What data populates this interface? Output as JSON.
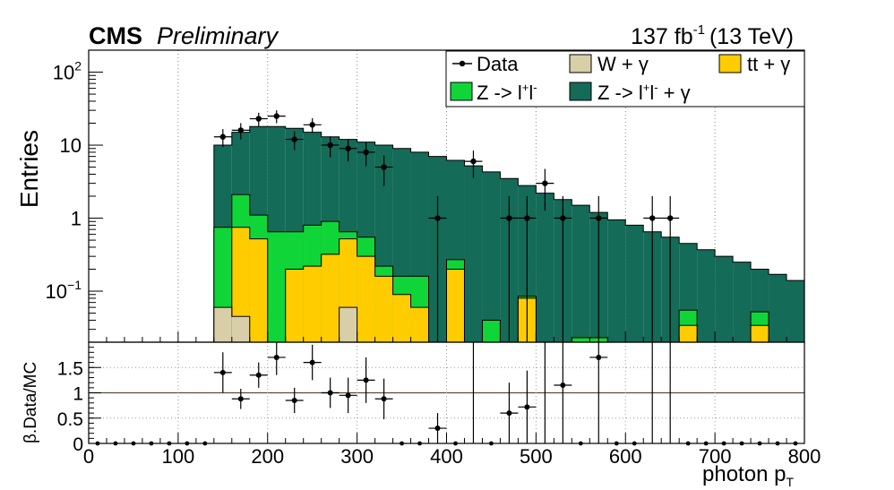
{
  "header": {
    "cms": "CMS",
    "preliminary": "Preliminary",
    "lumi_value": "137 fb",
    "lumi_exp": "-1",
    "energy": "(13 TeV)"
  },
  "chart_data": [
    {
      "type": "bar",
      "panel": "main",
      "ylabel": "Entries",
      "log_y": true,
      "xlim": [
        0,
        800
      ],
      "ylim": [
        0.02,
        200
      ],
      "bin_width": 20,
      "grid": "vertical dotted",
      "legend_placement": "top-right",
      "y_ticks": [
        {
          "value": 0.1,
          "base": "10",
          "exp": "−1"
        },
        {
          "value": 1,
          "base": "1",
          "exp": ""
        },
        {
          "value": 10,
          "base": "10",
          "exp": ""
        },
        {
          "value": 100,
          "base": "10",
          "exp": "2"
        }
      ],
      "legend": {
        "data": "Data",
        "wg": "W + γ",
        "ttg": "tt + γ",
        "zll": "Z ->  l",
        "zllg": "Z -> l",
        "zllg_suffix": " + γ"
      },
      "colors": {
        "zllg": "#146b57",
        "zll": "#10d538",
        "wg": "#d8cfa8",
        "ttg": "#ffcc00",
        "data": "#000000"
      },
      "series": [
        {
          "key": "zllg",
          "stack_total": [
            0,
            0,
            0,
            0,
            0,
            0,
            0,
            10,
            15,
            18,
            18,
            17,
            15,
            13,
            12,
            11,
            10,
            9,
            8,
            7,
            6.2,
            5.2,
            4.3,
            3.5,
            2.8,
            2.2,
            1.8,
            1.5,
            1.2,
            0.95,
            0.8,
            0.65,
            0.55,
            0.45,
            0.37,
            0.3,
            0.25,
            0.2,
            0.17,
            0.14
          ]
        },
        {
          "key": "zll",
          "stack_total": [
            0,
            0,
            0,
            0,
            0,
            0,
            0,
            0.75,
            2.1,
            1.1,
            0.65,
            0.65,
            0.8,
            0.9,
            0.65,
            0.55,
            0.22,
            0.16,
            0.16,
            0,
            0.27,
            0,
            0.04,
            0,
            0.085,
            0,
            0,
            0.023,
            0.023,
            0,
            0,
            0,
            0,
            0.055,
            0,
            0,
            0,
            0.052,
            0,
            0
          ]
        },
        {
          "key": "ttg",
          "stack_total": [
            0,
            0,
            0,
            0,
            0,
            0,
            0,
            0,
            0.75,
            0.52,
            0,
            0.2,
            0.22,
            0.32,
            0.52,
            0.3,
            0.16,
            0.09,
            0.06,
            0,
            0.2,
            0,
            0,
            0,
            0.08,
            0,
            0,
            0,
            0,
            0,
            0,
            0,
            0,
            0.034,
            0,
            0,
            0,
            0.034,
            0,
            0
          ]
        },
        {
          "key": "wg",
          "stack_total": [
            0,
            0,
            0,
            0,
            0,
            0,
            0,
            0.06,
            0.045,
            0,
            0,
            0,
            0,
            0,
            0.06,
            0,
            0,
            0,
            0,
            0,
            0,
            0,
            0,
            0,
            0,
            0,
            0,
            0,
            0,
            0,
            0,
            0,
            0,
            0,
            0,
            0,
            0,
            0,
            0,
            0
          ]
        }
      ],
      "data_points": [
        {
          "x": 150,
          "y": 13
        },
        {
          "x": 170,
          "y": 16
        },
        {
          "x": 190,
          "y": 23
        },
        {
          "x": 210,
          "y": 25
        },
        {
          "x": 230,
          "y": 12
        },
        {
          "x": 250,
          "y": 19
        },
        {
          "x": 270,
          "y": 10
        },
        {
          "x": 290,
          "y": 9
        },
        {
          "x": 310,
          "y": 8
        },
        {
          "x": 330,
          "y": 5
        },
        {
          "x": 390,
          "y": 1
        },
        {
          "x": 430,
          "y": 6
        },
        {
          "x": 470,
          "y": 1
        },
        {
          "x": 490,
          "y": 1
        },
        {
          "x": 510,
          "y": 3
        },
        {
          "x": 530,
          "y": 1
        },
        {
          "x": 570,
          "y": 1
        },
        {
          "x": 630,
          "y": 1
        },
        {
          "x": 650,
          "y": 1
        }
      ]
    },
    {
      "type": "scatter",
      "panel": "ratio",
      "ylabel": "β.Data/MC",
      "xlabel_main": "photon p",
      "xlabel_sub": "T",
      "xlim": [
        0,
        800
      ],
      "ylim": [
        0,
        2
      ],
      "x_ticks": [
        0,
        100,
        200,
        300,
        400,
        500,
        600,
        700,
        800
      ],
      "y_ticks": [
        {
          "value": 0,
          "label": "0"
        },
        {
          "value": 0.5,
          "label": "0.5"
        },
        {
          "value": 1,
          "label": "1"
        },
        {
          "value": 1.5,
          "label": "1.5"
        }
      ],
      "reference_line": 1,
      "zero_points": [
        10,
        30,
        50,
        70,
        90,
        110,
        130,
        350,
        370,
        410,
        450,
        550,
        590,
        610,
        670,
        690,
        710,
        730,
        750,
        770,
        790
      ],
      "points": [
        {
          "x": 150,
          "y": 1.4,
          "err": 0.4
        },
        {
          "x": 170,
          "y": 0.88,
          "err": 0.2
        },
        {
          "x": 190,
          "y": 1.35,
          "err": 0.25
        },
        {
          "x": 210,
          "y": 1.7,
          "err": 0.35
        },
        {
          "x": 230,
          "y": 0.85,
          "err": 0.25
        },
        {
          "x": 250,
          "y": 1.6,
          "err": 0.35
        },
        {
          "x": 270,
          "y": 1.0,
          "err": 0.3
        },
        {
          "x": 290,
          "y": 0.95,
          "err": 0.35
        },
        {
          "x": 310,
          "y": 1.25,
          "err": 0.45
        },
        {
          "x": 330,
          "y": 0.88,
          "err": 0.4
        },
        {
          "x": 390,
          "y": 0.3,
          "err": 0.3
        },
        {
          "x": 470,
          "y": 0.6,
          "err": 0.6
        },
        {
          "x": 490,
          "y": 0.72,
          "err": 0.72
        },
        {
          "x": 530,
          "y": 1.15,
          "err": 1.15
        },
        {
          "x": 570,
          "y": 1.7,
          "err": 1.7
        }
      ],
      "upper_only": [
        {
          "x": 430,
          "y": 1.95
        },
        {
          "x": 510,
          "y": 1.95
        },
        {
          "x": 630,
          "y": 1.95
        },
        {
          "x": 650,
          "y": 1.95
        }
      ]
    }
  ]
}
